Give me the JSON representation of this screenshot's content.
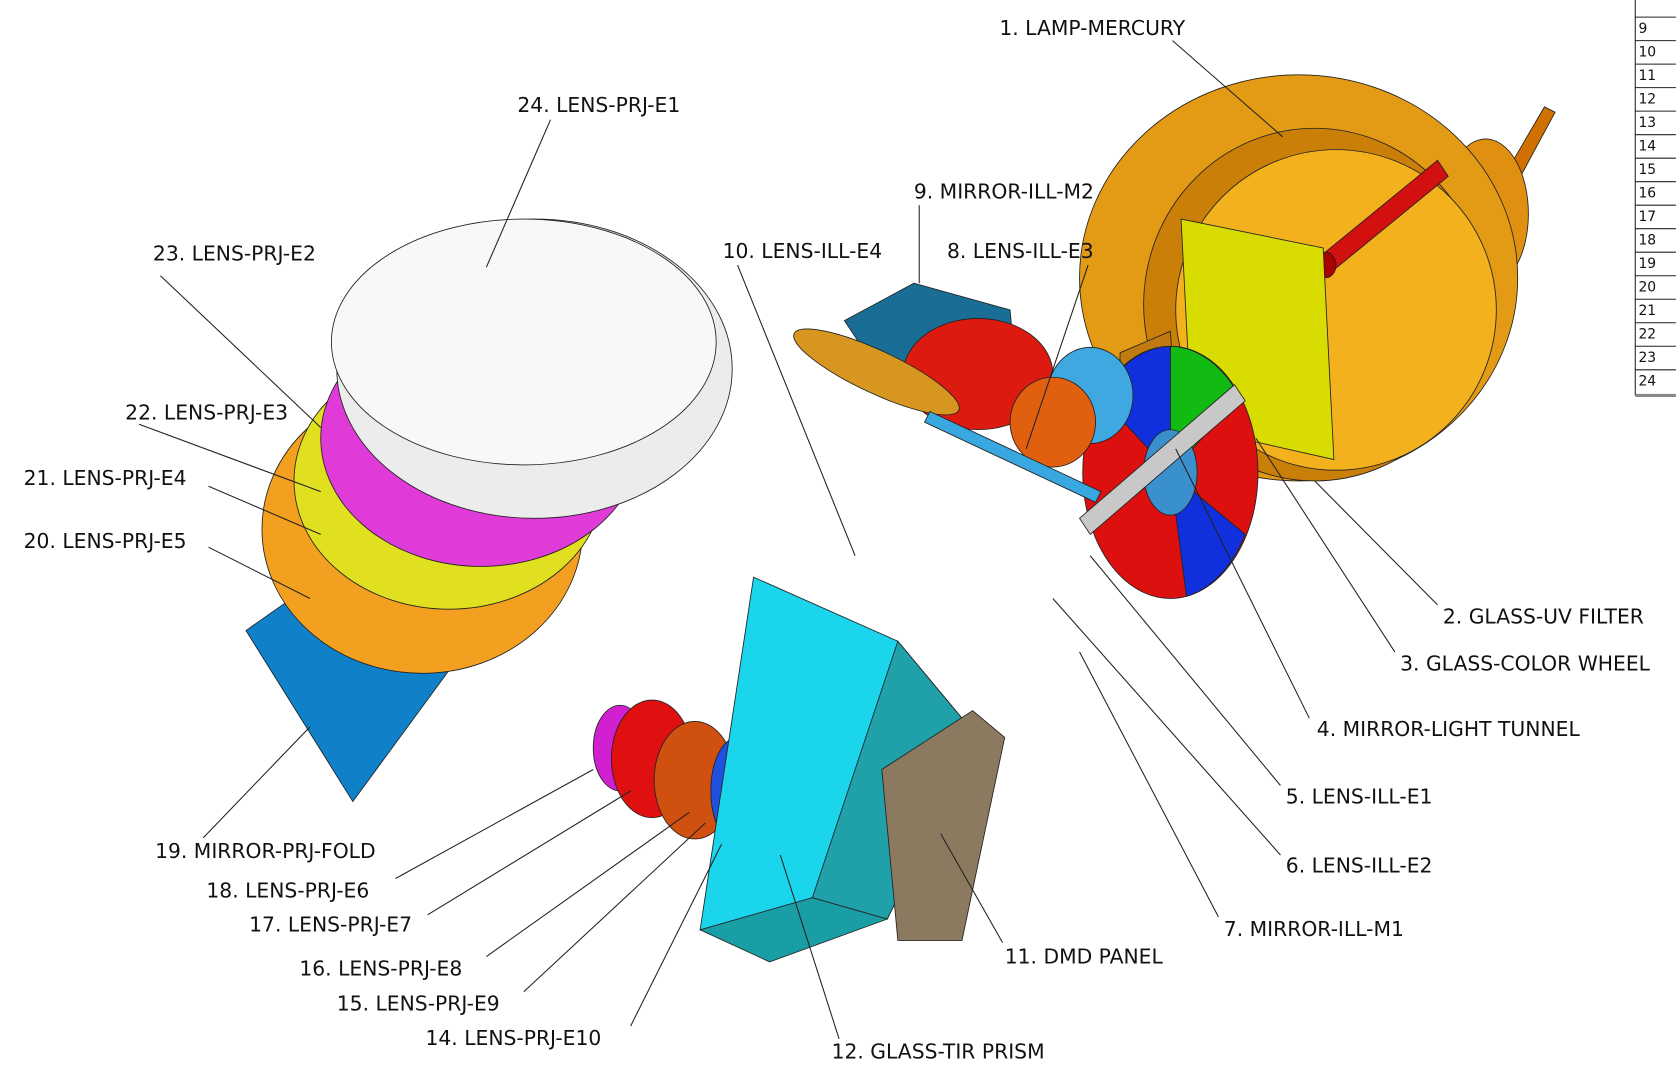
{
  "labels": [
    "1. LAMP-MERCURY",
    "2. GLASS-UV FILTER",
    "3. GLASS-COLOR WHEEL",
    "4. MIRROR-LIGHT TUNNEL",
    "5. LENS-ILL-E1",
    "6. LENS-ILL-E2",
    "7. MIRROR-ILL-M1",
    "8. LENS-ILL-E3",
    "9. MIRROR-ILL-M2",
    "10. LENS-ILL-E4",
    "11. DMD PANEL",
    "12. GLASS-TIR PRISM",
    "14. LENS-PRJ-E10",
    "15. LENS-PRJ-E9",
    "16. LENS-PRJ-E8",
    "17. LENS-PRJ-E7",
    "18. LENS-PRJ-E6",
    "19. MIRROR-PRJ-FOLD",
    "20. LENS-PRJ-E5",
    "21. LENS-PRJ-E4",
    "22. LENS-PRJ-E3",
    "23. LENS-PRJ-E2",
    "24. LENS-PRJ-E1"
  ],
  "table": {
    "rows": [
      "9",
      "10",
      "11",
      "12",
      "13",
      "14",
      "15",
      "16",
      "17",
      "18",
      "19",
      "20",
      "21",
      "22",
      "23",
      "24"
    ]
  }
}
